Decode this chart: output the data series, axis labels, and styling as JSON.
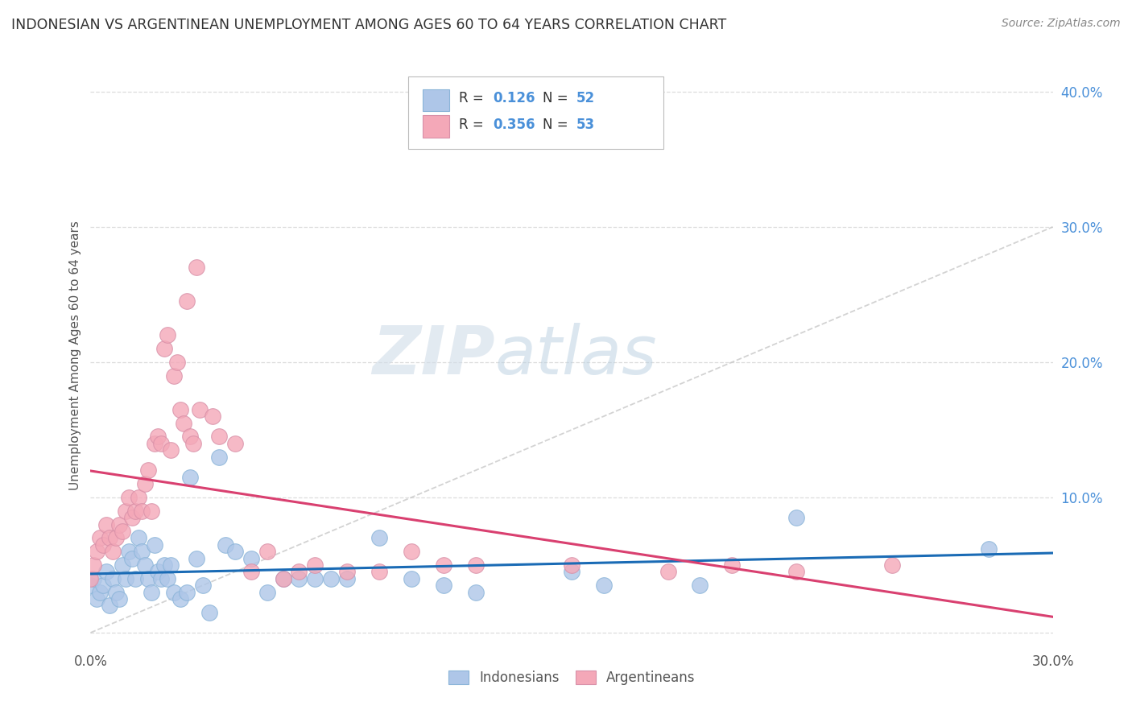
{
  "title": "INDONESIAN VS ARGENTINEAN UNEMPLOYMENT AMONG AGES 60 TO 64 YEARS CORRELATION CHART",
  "source": "Source: ZipAtlas.com",
  "ylabel": "Unemployment Among Ages 60 to 64 years",
  "xlim": [
    0.0,
    0.3
  ],
  "ylim": [
    -0.01,
    0.42
  ],
  "yticks": [
    0.0,
    0.1,
    0.2,
    0.3,
    0.4
  ],
  "ytick_labels": [
    "",
    "10.0%",
    "20.0%",
    "30.0%",
    "40.0%"
  ],
  "xticks": [
    0.0,
    0.05,
    0.1,
    0.15,
    0.2,
    0.25,
    0.3
  ],
  "xtick_labels": [
    "0.0%",
    "",
    "",
    "",
    "",
    "",
    "30.0%"
  ],
  "indonesian_R": 0.126,
  "indonesian_N": 52,
  "argentinean_R": 0.356,
  "argentinean_N": 53,
  "indonesian_color": "#aec6e8",
  "argentinean_color": "#f4a8b8",
  "indonesian_line_color": "#1a6bb5",
  "argentinean_line_color": "#d94070",
  "trend_line_color": "#cccccc",
  "indonesian_x": [
    0.0,
    0.001,
    0.002,
    0.003,
    0.004,
    0.005,
    0.006,
    0.007,
    0.008,
    0.009,
    0.01,
    0.011,
    0.012,
    0.013,
    0.014,
    0.015,
    0.016,
    0.017,
    0.018,
    0.019,
    0.02,
    0.021,
    0.022,
    0.023,
    0.024,
    0.025,
    0.026,
    0.028,
    0.03,
    0.031,
    0.033,
    0.035,
    0.037,
    0.04,
    0.042,
    0.045,
    0.05,
    0.055,
    0.06,
    0.065,
    0.07,
    0.075,
    0.08,
    0.09,
    0.1,
    0.11,
    0.12,
    0.15,
    0.16,
    0.19,
    0.22,
    0.28
  ],
  "indonesian_y": [
    0.035,
    0.04,
    0.025,
    0.03,
    0.035,
    0.045,
    0.02,
    0.04,
    0.03,
    0.025,
    0.05,
    0.04,
    0.06,
    0.055,
    0.04,
    0.07,
    0.06,
    0.05,
    0.04,
    0.03,
    0.065,
    0.045,
    0.04,
    0.05,
    0.04,
    0.05,
    0.03,
    0.025,
    0.03,
    0.115,
    0.055,
    0.035,
    0.015,
    0.13,
    0.065,
    0.06,
    0.055,
    0.03,
    0.04,
    0.04,
    0.04,
    0.04,
    0.04,
    0.07,
    0.04,
    0.035,
    0.03,
    0.045,
    0.035,
    0.035,
    0.085,
    0.062
  ],
  "argentinean_x": [
    0.0,
    0.001,
    0.002,
    0.003,
    0.004,
    0.005,
    0.006,
    0.007,
    0.008,
    0.009,
    0.01,
    0.011,
    0.012,
    0.013,
    0.014,
    0.015,
    0.016,
    0.017,
    0.018,
    0.019,
    0.02,
    0.021,
    0.022,
    0.023,
    0.024,
    0.025,
    0.026,
    0.027,
    0.028,
    0.029,
    0.03,
    0.031,
    0.032,
    0.033,
    0.034,
    0.038,
    0.04,
    0.045,
    0.05,
    0.055,
    0.06,
    0.065,
    0.07,
    0.08,
    0.09,
    0.1,
    0.11,
    0.12,
    0.15,
    0.18,
    0.2,
    0.22,
    0.25
  ],
  "argentinean_y": [
    0.04,
    0.05,
    0.06,
    0.07,
    0.065,
    0.08,
    0.07,
    0.06,
    0.07,
    0.08,
    0.075,
    0.09,
    0.1,
    0.085,
    0.09,
    0.1,
    0.09,
    0.11,
    0.12,
    0.09,
    0.14,
    0.145,
    0.14,
    0.21,
    0.22,
    0.135,
    0.19,
    0.2,
    0.165,
    0.155,
    0.245,
    0.145,
    0.14,
    0.27,
    0.165,
    0.16,
    0.145,
    0.14,
    0.045,
    0.06,
    0.04,
    0.045,
    0.05,
    0.045,
    0.045,
    0.06,
    0.05,
    0.05,
    0.05,
    0.045,
    0.05,
    0.045,
    0.05
  ],
  "watermark_zip": "ZIP",
  "watermark_atlas": "atlas",
  "background_color": "#ffffff",
  "grid_color": "#dddddd"
}
